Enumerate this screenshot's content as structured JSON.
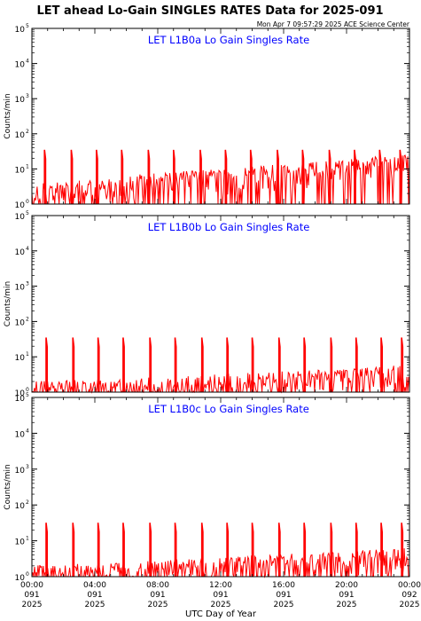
{
  "header": {
    "title": "LET ahead Lo-Gain SINGLES RATES Data for 2025-091",
    "timestamp": "Mon Apr  7 09:57:29 2025 ACE Science Center"
  },
  "colors": {
    "trace": "#ff0000",
    "panel_title": "#0000ff",
    "axes": "#000000"
  },
  "chart_data": [
    {
      "type": "line",
      "title": "LET L1B0a Lo Gain Singles Rate",
      "ylabel": "Counts/min",
      "yscale": "log",
      "ylim": [
        1,
        100000
      ],
      "xlim": [
        0,
        24
      ],
      "y_ticks": [
        {
          "value": 1,
          "base": "10",
          "exp": "0"
        },
        {
          "value": 10,
          "base": "10",
          "exp": "1"
        },
        {
          "value": 100,
          "base": "10",
          "exp": "2"
        },
        {
          "value": 1000,
          "base": "10",
          "exp": "3"
        },
        {
          "value": 10000,
          "base": "10",
          "exp": "4"
        },
        {
          "value": 100000,
          "base": "10",
          "exp": "5"
        }
      ],
      "spike_hours": [
        0.8,
        2.5,
        4.1,
        5.7,
        7.4,
        9.0,
        10.7,
        12.3,
        13.9,
        15.6,
        17.2,
        18.9,
        20.5,
        22.1,
        23.4
      ],
      "spike_value": 35,
      "baseline_trend": [
        [
          0,
          2
        ],
        [
          4,
          2.5
        ],
        [
          8,
          4
        ],
        [
          12,
          5
        ],
        [
          16,
          7
        ],
        [
          20,
          10
        ],
        [
          24,
          13
        ]
      ]
    },
    {
      "type": "line",
      "title": "LET L1B0b Lo Gain Singles Rate",
      "ylabel": "Counts/min",
      "yscale": "log",
      "ylim": [
        1,
        100000
      ],
      "xlim": [
        0,
        24
      ],
      "y_ticks": [
        {
          "value": 1,
          "base": "10",
          "exp": "0"
        },
        {
          "value": 10,
          "base": "10",
          "exp": "1"
        },
        {
          "value": 100,
          "base": "10",
          "exp": "2"
        },
        {
          "value": 1000,
          "base": "10",
          "exp": "3"
        },
        {
          "value": 10000,
          "base": "10",
          "exp": "4"
        },
        {
          "value": 100000,
          "base": "10",
          "exp": "5"
        }
      ],
      "spike_hours": [
        0.9,
        2.6,
        4.2,
        5.8,
        7.5,
        9.1,
        10.8,
        12.4,
        14.0,
        15.7,
        17.3,
        19.0,
        20.6,
        22.2,
        23.5
      ],
      "spike_value": 35,
      "baseline_trend": [
        [
          0,
          1.05
        ],
        [
          6,
          1.2
        ],
        [
          12,
          1.7
        ],
        [
          18,
          2.2
        ],
        [
          24,
          3.0
        ]
      ]
    },
    {
      "type": "line",
      "title": "LET L1B0c Lo Gain Singles Rate",
      "ylabel": "Counts/min",
      "yscale": "log",
      "ylim": [
        1,
        100000
      ],
      "xlim": [
        0,
        24
      ],
      "y_ticks": [
        {
          "value": 1,
          "base": "10",
          "exp": "0"
        },
        {
          "value": 10,
          "base": "10",
          "exp": "1"
        },
        {
          "value": 100,
          "base": "10",
          "exp": "2"
        },
        {
          "value": 1000,
          "base": "10",
          "exp": "3"
        },
        {
          "value": 10000,
          "base": "10",
          "exp": "4"
        },
        {
          "value": 100000,
          "base": "10",
          "exp": "5"
        }
      ],
      "spike_hours": [
        0.9,
        2.6,
        4.2,
        5.8,
        7.5,
        9.1,
        10.8,
        12.4,
        14.0,
        15.7,
        17.3,
        19.0,
        20.6,
        22.2,
        23.5
      ],
      "spike_value": 32,
      "baseline_trend": [
        [
          0,
          1.05
        ],
        [
          6,
          1.3
        ],
        [
          12,
          1.8
        ],
        [
          18,
          2.4
        ],
        [
          24,
          3.2
        ]
      ]
    }
  ],
  "x_axis": {
    "label": "UTC Day of Year",
    "ticks": [
      {
        "hour": 0,
        "time": "00:00",
        "doy": "091",
        "year": "2025"
      },
      {
        "hour": 4,
        "time": "04:00",
        "doy": "091",
        "year": "2025"
      },
      {
        "hour": 8,
        "time": "08:00",
        "doy": "091",
        "year": "2025"
      },
      {
        "hour": 12,
        "time": "12:00",
        "doy": "091",
        "year": "2025"
      },
      {
        "hour": 16,
        "time": "16:00",
        "doy": "091",
        "year": "2025"
      },
      {
        "hour": 20,
        "time": "20:00",
        "doy": "091",
        "year": "2025"
      },
      {
        "hour": 24,
        "time": "00:00",
        "doy": "092",
        "year": "2025"
      }
    ]
  }
}
